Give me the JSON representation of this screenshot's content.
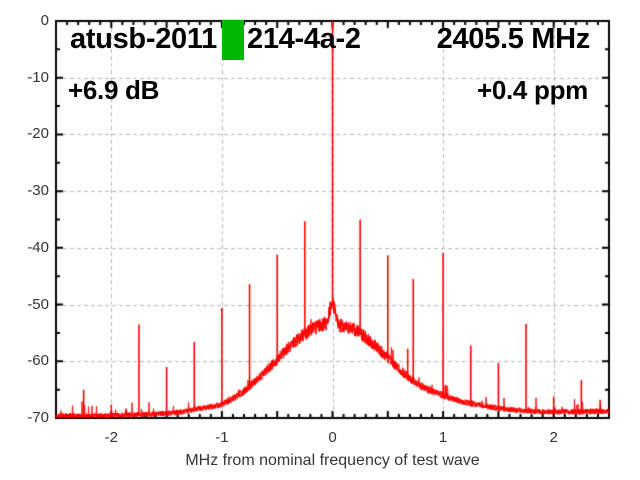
{
  "header": {
    "title_prefix": "atusb-2011",
    "title_suffix": "214-4a-2",
    "frequency_label": "2405.5 MHz",
    "gain_label": "+6.9 dB",
    "ppm_label": "+0.4 ppm",
    "redaction_color": "#00b800"
  },
  "chart_data": {
    "type": "line",
    "title": "atusb-2011 [redacted] 214-4a-2  2405.5 MHz",
    "xlabel": "MHz from nominal frequency of test wave",
    "ylabel": "",
    "xlim": [
      -2.5,
      2.5
    ],
    "ylim": [
      -70,
      0
    ],
    "grid": true,
    "trace_color": "#ff0000",
    "grid_color": "#b8b8b8",
    "border_color": "#000000",
    "x_ticks": [
      {
        "label": "-2",
        "value": -2
      },
      {
        "label": "-1",
        "value": -1
      },
      {
        "label": "0",
        "value": 0
      },
      {
        "label": "1",
        "value": 1
      },
      {
        "label": "2",
        "value": 2
      }
    ],
    "y_ticks": [
      {
        "label": "0",
        "value": 0
      },
      {
        "label": "-10",
        "value": -10
      },
      {
        "label": "-20",
        "value": -20
      },
      {
        "label": "-30",
        "value": -30
      },
      {
        "label": "-40",
        "value": -40
      },
      {
        "label": "-50",
        "value": -50
      },
      {
        "label": "-60",
        "value": -60
      },
      {
        "label": "-70",
        "value": -70
      }
    ],
    "x_minor_step": 0.1,
    "x_major_step": 0.5,
    "y_minor_step": 5,
    "noise_envelope_db": [
      [
        -2.5,
        -69.6
      ],
      [
        -2.1,
        -69.6
      ],
      [
        -1.9,
        -69.5
      ],
      [
        -1.7,
        -69.4
      ],
      [
        -1.5,
        -69.2
      ],
      [
        -1.35,
        -68.9
      ],
      [
        -1.2,
        -68.3
      ],
      [
        -1.1,
        -68.0
      ],
      [
        -1.0,
        -67.6
      ],
      [
        -0.9,
        -66.6
      ],
      [
        -0.8,
        -65.3
      ],
      [
        -0.7,
        -63.6
      ],
      [
        -0.6,
        -61.7
      ],
      [
        -0.5,
        -59.7
      ],
      [
        -0.4,
        -57.6
      ],
      [
        -0.3,
        -55.9
      ],
      [
        -0.2,
        -54.5
      ],
      [
        -0.12,
        -53.8
      ],
      [
        -0.05,
        -53.4
      ],
      [
        -0.02,
        -50.6
      ],
      [
        0.0,
        -49.8
      ],
      [
        0.02,
        -50.6
      ],
      [
        0.05,
        -53.6
      ],
      [
        0.12,
        -53.9
      ],
      [
        0.2,
        -54.4
      ],
      [
        0.3,
        -55.8
      ],
      [
        0.4,
        -57.5
      ],
      [
        0.5,
        -59.4
      ],
      [
        0.6,
        -61.3
      ],
      [
        0.7,
        -63.0
      ],
      [
        0.8,
        -64.4
      ],
      [
        0.9,
        -65.3
      ],
      [
        1.0,
        -66.0
      ],
      [
        1.1,
        -66.7
      ],
      [
        1.2,
        -67.2
      ],
      [
        1.35,
        -67.8
      ],
      [
        1.5,
        -68.3
      ],
      [
        1.7,
        -68.7
      ],
      [
        1.9,
        -68.9
      ],
      [
        2.2,
        -68.9
      ],
      [
        2.5,
        -68.8
      ]
    ],
    "spikes": [
      {
        "x": -2.25,
        "top_db": -65.0
      },
      {
        "x": -2.0,
        "top_db": -67.6
      },
      {
        "x": -1.75,
        "top_db": -53.5
      },
      {
        "x": -1.5,
        "top_db": -61.0
      },
      {
        "x": -1.25,
        "top_db": -56.6
      },
      {
        "x": -1.0,
        "top_db": -50.6
      },
      {
        "x": -0.75,
        "top_db": -46.4
      },
      {
        "x": -0.5,
        "top_db": -41.2
      },
      {
        "x": -0.25,
        "top_db": -35.3
      },
      {
        "x": 0.25,
        "top_db": -35.0
      },
      {
        "x": 0.5,
        "top_db": -41.3
      },
      {
        "x": 0.68,
        "top_db": -57.8
      },
      {
        "x": 0.73,
        "top_db": -45.5
      },
      {
        "x": 1.0,
        "top_db": -40.9
      },
      {
        "x": 1.25,
        "top_db": -57.2
      },
      {
        "x": 1.5,
        "top_db": -60.3
      },
      {
        "x": 1.75,
        "top_db": -53.4
      },
      {
        "x": 2.0,
        "top_db": -66.2
      },
      {
        "x": 2.25,
        "top_db": -63.3
      },
      {
        "x": 2.42,
        "top_db": -66.8
      }
    ],
    "carrier_spike": {
      "x": 0.0,
      "top_db": 0.0
    }
  }
}
